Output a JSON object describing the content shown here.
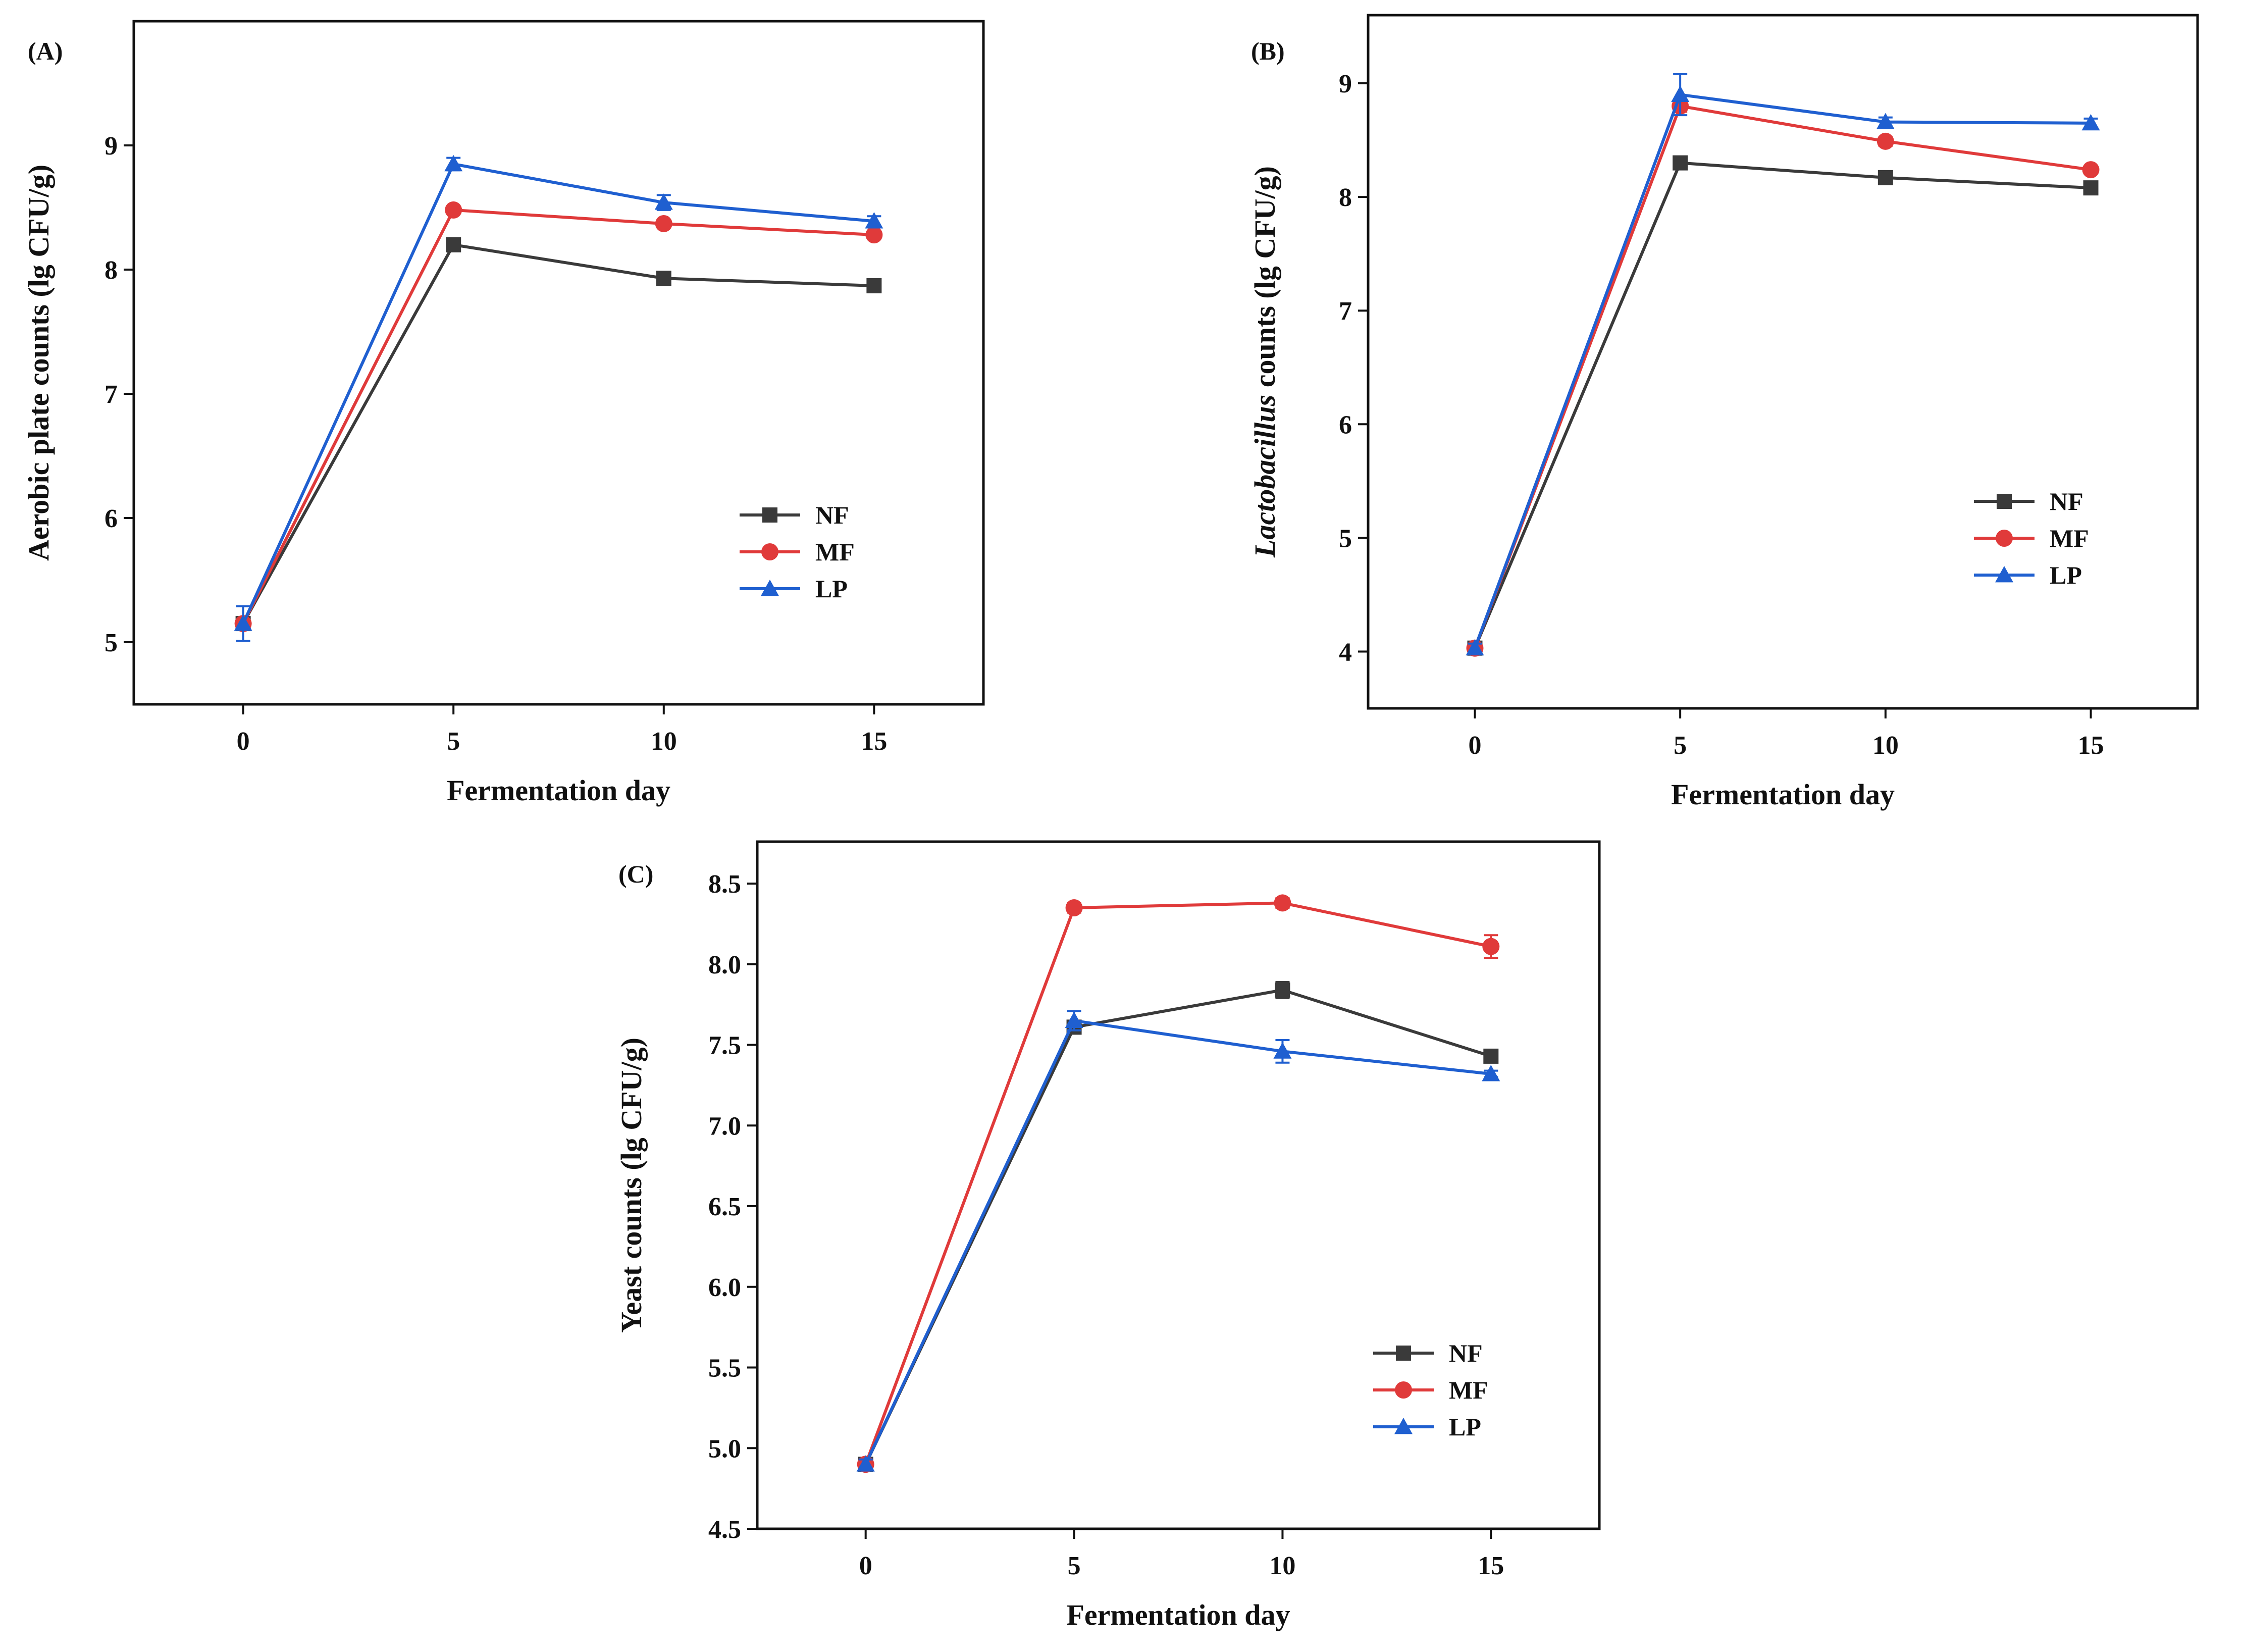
{
  "figure": {
    "colors": {
      "NF": "#3a3a3a",
      "MF": "#e03a3a",
      "LP": "#1f5fd0",
      "axis": "#111111"
    }
  },
  "chart_data": [
    {
      "id": "A",
      "type": "line",
      "panel_label": "(A)",
      "title": "",
      "xlabel": "Fermentation day",
      "ylabel": "Aerobic plate counts (lg CFU/g)",
      "ylabel_italic_prefix": "",
      "ylabel_rest": "Aerobic plate counts (lg CFU/g)",
      "x": [
        0,
        5,
        10,
        15
      ],
      "x_ticks": [
        "0",
        "5",
        "10",
        "15"
      ],
      "xlim": [
        -2.6,
        17.6
      ],
      "ylim": [
        4.5,
        10.0
      ],
      "y_ticks": [
        5,
        6,
        7,
        8,
        9
      ],
      "y_tick_labels": [
        "5",
        "6",
        "7",
        "8",
        "9"
      ],
      "legend": {
        "position": "right",
        "entries": [
          "NF",
          "MF",
          "LP"
        ]
      },
      "series": [
        {
          "name": "NF",
          "marker": "square",
          "values": [
            5.15,
            8.2,
            7.93,
            7.87
          ],
          "errors": [
            0.03,
            0.03,
            0.04,
            0.04
          ]
        },
        {
          "name": "MF",
          "marker": "circle",
          "values": [
            5.15,
            8.48,
            8.37,
            8.28
          ],
          "errors": [
            0.03,
            0.02,
            0.03,
            0.03
          ]
        },
        {
          "name": "LP",
          "marker": "triangle",
          "values": [
            5.15,
            8.85,
            8.54,
            8.39
          ],
          "errors": [
            0.14,
            0.05,
            0.06,
            0.04
          ]
        }
      ]
    },
    {
      "id": "B",
      "type": "line",
      "panel_label": "(B)",
      "title": "",
      "xlabel": "Fermentation day",
      "ylabel": "Lactobacillus counts (lg CFU/g)",
      "ylabel_italic_prefix": "Lactobacillus",
      "ylabel_rest": " counts (lg CFU/g)",
      "x": [
        0,
        5,
        10,
        15
      ],
      "x_ticks": [
        "0",
        "5",
        "10",
        "15"
      ],
      "xlim": [
        -2.6,
        17.6
      ],
      "ylim": [
        3.5,
        9.6
      ],
      "y_ticks": [
        4,
        5,
        6,
        7,
        8,
        9
      ],
      "y_tick_labels": [
        "4",
        "5",
        "6",
        "7",
        "8",
        "9"
      ],
      "legend": {
        "position": "right",
        "entries": [
          "NF",
          "MF",
          "LP"
        ]
      },
      "series": [
        {
          "name": "NF",
          "marker": "square",
          "values": [
            4.03,
            8.3,
            8.17,
            8.08
          ],
          "errors": [
            0.03,
            0.03,
            0.03,
            0.03
          ]
        },
        {
          "name": "MF",
          "marker": "circle",
          "values": [
            4.03,
            8.8,
            8.49,
            8.24
          ],
          "errors": [
            0.03,
            0.05,
            0.04,
            0.03
          ]
        },
        {
          "name": "LP",
          "marker": "triangle",
          "values": [
            4.03,
            8.9,
            8.66,
            8.65
          ],
          "errors": [
            0.04,
            0.18,
            0.04,
            0.04
          ]
        }
      ]
    },
    {
      "id": "C",
      "type": "line",
      "panel_label": "(C)",
      "title": "",
      "xlabel": "Fermentation day",
      "ylabel": "Yeast counts (lg CFU/g)",
      "ylabel_italic_prefix": "",
      "ylabel_rest": "Yeast counts (lg CFU/g)",
      "x": [
        0,
        5,
        10,
        15
      ],
      "x_ticks": [
        "0",
        "5",
        "10",
        "15"
      ],
      "xlim": [
        -2.6,
        17.6
      ],
      "ylim": [
        4.5,
        8.76
      ],
      "y_ticks": [
        4.5,
        5.0,
        5.5,
        6.0,
        6.5,
        7.0,
        7.5,
        8.0,
        8.5
      ],
      "y_tick_labels": [
        "4.5",
        "5.0",
        "5.5",
        "6.0",
        "6.5",
        "7.0",
        "7.5",
        "8.0",
        "8.5"
      ],
      "legend": {
        "position": "right",
        "entries": [
          "NF",
          "MF",
          "LP"
        ]
      },
      "series": [
        {
          "name": "NF",
          "marker": "square",
          "values": [
            4.9,
            7.61,
            7.84,
            7.43
          ],
          "errors": [
            0.03,
            0.04,
            0.05,
            0.03
          ]
        },
        {
          "name": "MF",
          "marker": "circle",
          "values": [
            4.9,
            8.35,
            8.38,
            8.11
          ],
          "errors": [
            0.03,
            0.03,
            0.03,
            0.07
          ]
        },
        {
          "name": "LP",
          "marker": "triangle",
          "values": [
            4.9,
            7.65,
            7.46,
            7.32
          ],
          "errors": [
            0.03,
            0.06,
            0.07,
            0.02
          ]
        }
      ]
    }
  ]
}
